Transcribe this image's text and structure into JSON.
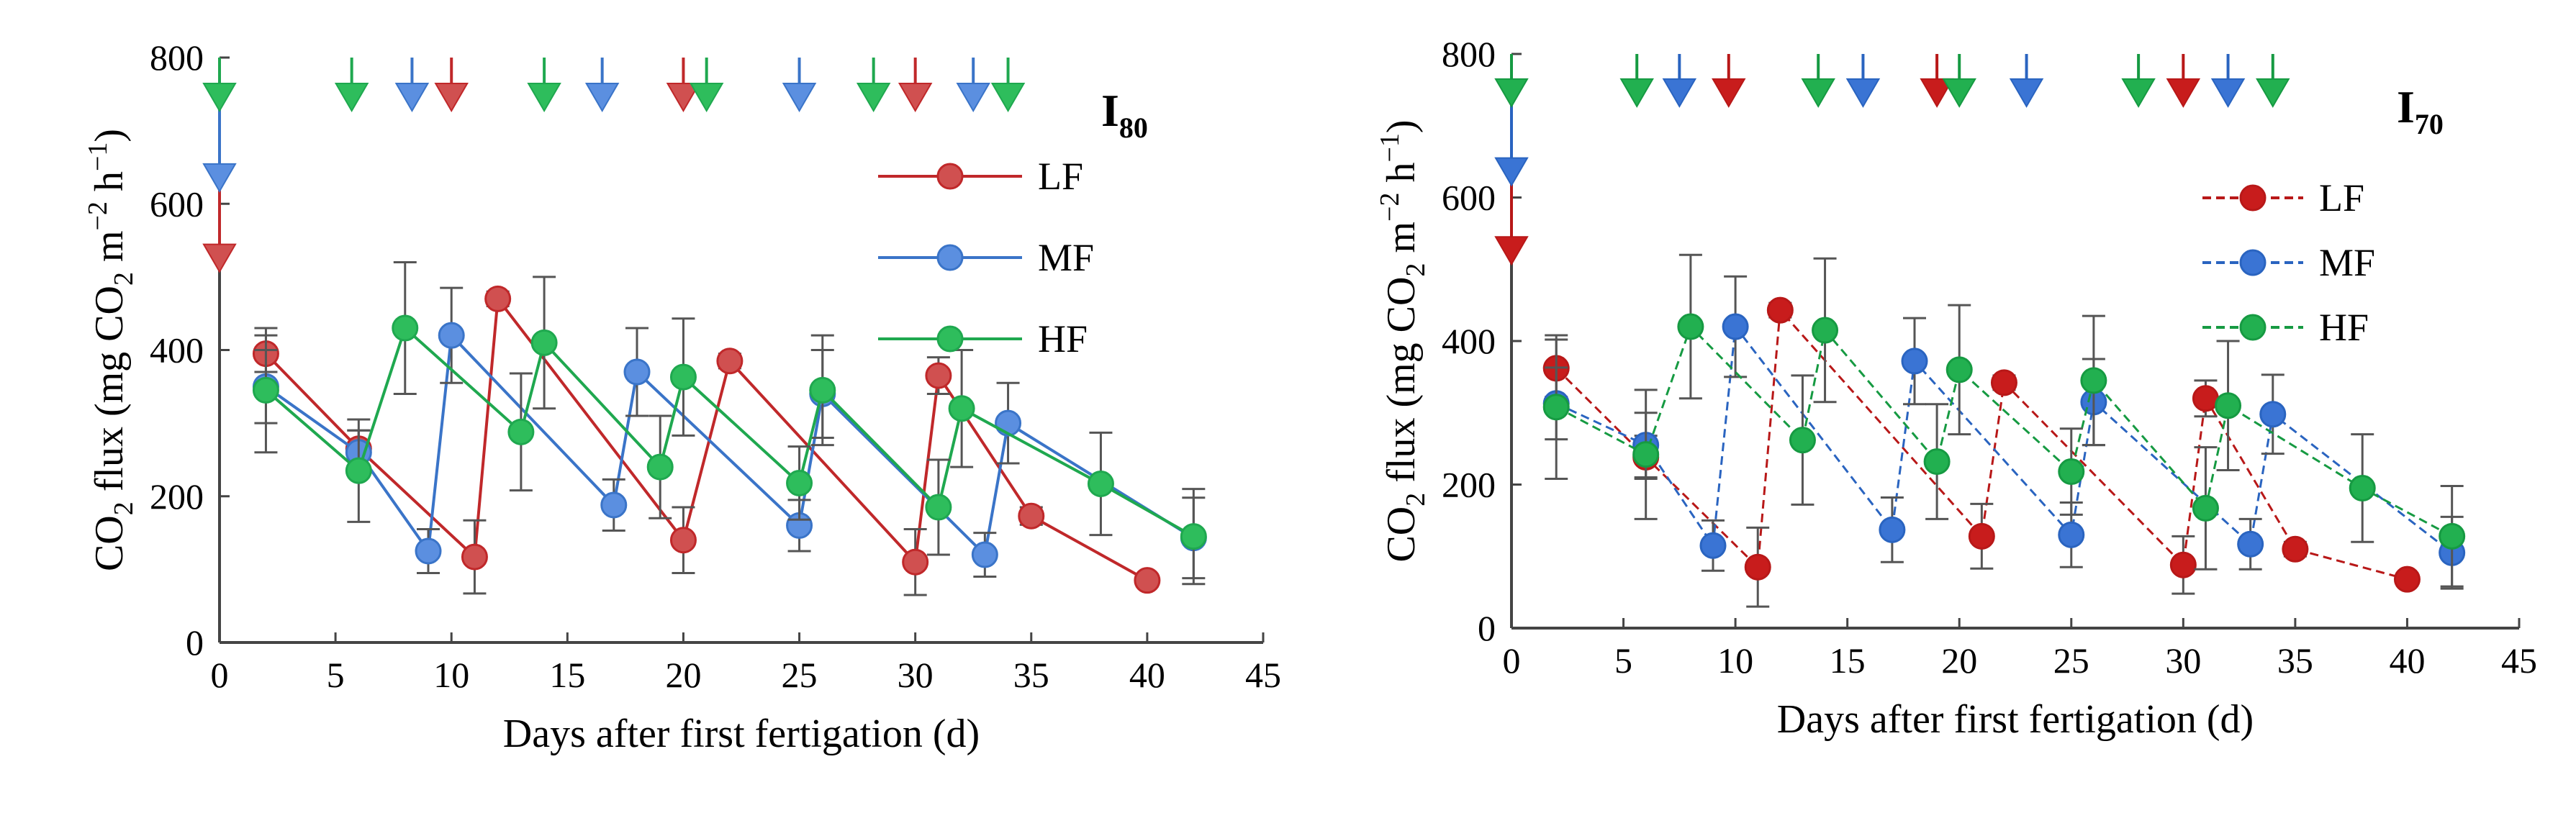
{
  "chart_data": [
    {
      "type": "line",
      "panel_title": "I",
      "panel_subscript": "80",
      "xlabel": "Days after first fertigation (d)",
      "ylabel": {
        "main": "CO",
        "sub2": "2",
        "rest": " flux (mg CO",
        "sub2b": "2",
        "m": " m",
        "sup1": "−2",
        "h": " h",
        "sup2": "−1",
        "close": ")"
      },
      "xlim": [
        0,
        45
      ],
      "ylim": [
        0,
        800
      ],
      "xticks": [
        0,
        5,
        10,
        15,
        20,
        25,
        30,
        35,
        40,
        45
      ],
      "yticks": [
        0,
        200,
        400,
        600,
        800
      ],
      "line_style": "solid",
      "legend_position": "top-right",
      "series": [
        {
          "name": "LF",
          "color": "#c0282a",
          "fill": "#d05050",
          "x": [
            2,
            6,
            11,
            12,
            20,
            22,
            30,
            31,
            35,
            40
          ],
          "y": [
            395,
            265,
            117,
            470,
            140,
            385,
            110,
            365,
            173,
            85
          ],
          "err": [
            25,
            25,
            50,
            10,
            45,
            10,
            45,
            25,
            12,
            8
          ]
        },
        {
          "name": "MF",
          "color": "#3a74c8",
          "fill": "#5b8fe0",
          "x": [
            2,
            6,
            9,
            10,
            17,
            18,
            25,
            26,
            33,
            34,
            42
          ],
          "y": [
            350,
            260,
            125,
            420,
            188,
            370,
            160,
            340,
            120,
            300,
            143
          ],
          "err": [
            50,
            30,
            30,
            65,
            35,
            60,
            35,
            60,
            30,
            55,
            55
          ]
        },
        {
          "name": "HF",
          "color": "#1fa84f",
          "fill": "#2ebd5c",
          "x": [
            2,
            6,
            8,
            13,
            14,
            19,
            20,
            25,
            26,
            31,
            32,
            38,
            42
          ],
          "y": [
            345,
            235,
            430,
            288,
            410,
            240,
            363,
            218,
            345,
            185,
            320,
            217,
            145
          ],
          "err": [
            85,
            70,
            90,
            80,
            90,
            70,
            80,
            50,
            75,
            65,
            80,
            70,
            65
          ]
        }
      ],
      "fertigation_arrows": [
        {
          "series": "LF",
          "days": [
            0,
            10,
            20,
            30
          ]
        },
        {
          "series": "MF",
          "days": [
            0,
            8.3,
            16.5,
            25,
            32.5
          ]
        },
        {
          "series": "HF",
          "days": [
            0,
            5.7,
            14,
            21,
            28.2,
            34
          ]
        }
      ]
    },
    {
      "type": "line",
      "panel_title": "I",
      "panel_subscript": "70",
      "xlabel": "Days after first fertigation (d)",
      "ylabel": {
        "main": "CO",
        "sub2": "2",
        "rest": " flux (mg CO",
        "sub2b": "2",
        "m": " m",
        "sup1": "−2",
        "h": " h",
        "sup2": "−1",
        "close": ")"
      },
      "xlim": [
        0,
        45
      ],
      "ylim": [
        0,
        800
      ],
      "xticks": [
        0,
        5,
        10,
        15,
        20,
        25,
        30,
        35,
        40,
        45
      ],
      "yticks": [
        0,
        200,
        400,
        600,
        800
      ],
      "line_style": "dashed",
      "legend_position": "top-right",
      "series": [
        {
          "name": "LF",
          "color": "#b81818",
          "fill": "#c81c1c",
          "x": [
            2,
            6,
            11,
            12,
            21,
            22,
            30,
            31,
            35,
            40
          ],
          "y": [
            362,
            238,
            85,
            443,
            128,
            342,
            88,
            320,
            110,
            68
          ],
          "err": [
            40,
            30,
            55,
            10,
            45,
            10,
            40,
            25,
            10,
            8
          ]
        },
        {
          "name": "MF",
          "color": "#2a64c0",
          "fill": "#3a74d4",
          "x": [
            2,
            6,
            9,
            10,
            17,
            18,
            25,
            26,
            33,
            34,
            42
          ],
          "y": [
            313,
            255,
            115,
            420,
            137,
            372,
            130,
            315,
            117,
            298,
            105
          ],
          "err": [
            50,
            45,
            35,
            70,
            45,
            60,
            45,
            60,
            35,
            55,
            50
          ]
        },
        {
          "name": "HF",
          "color": "#169a42",
          "fill": "#22b050",
          "x": [
            2,
            6,
            8,
            13,
            14,
            19,
            20,
            25,
            26,
            31,
            32,
            38,
            42
          ],
          "y": [
            308,
            242,
            420,
            262,
            415,
            232,
            360,
            218,
            345,
            167,
            310,
            195,
            128
          ],
          "err": [
            100,
            90,
            100,
            90,
            100,
            80,
            90,
            60,
            90,
            85,
            90,
            75,
            70
          ]
        }
      ],
      "fertigation_arrows": [
        {
          "series": "LF",
          "days": [
            0,
            9.7,
            19,
            30
          ]
        },
        {
          "series": "MF",
          "days": [
            0,
            7.5,
            15.7,
            23,
            32
          ]
        },
        {
          "series": "HF",
          "days": [
            0,
            5.6,
            13.7,
            20,
            28,
            34
          ]
        }
      ]
    }
  ]
}
